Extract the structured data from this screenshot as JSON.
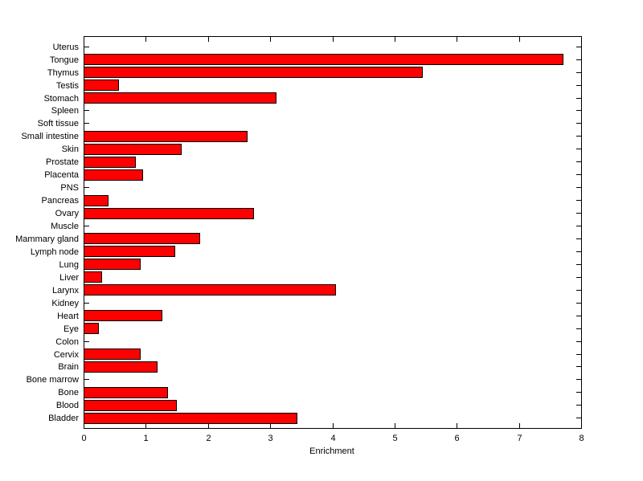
{
  "figure": {
    "background": "#ffffff"
  },
  "chart_data": {
    "type": "bar",
    "orientation": "horizontal",
    "title": "",
    "xlabel": "Enrichment",
    "ylabel": "",
    "xlim": [
      0,
      8
    ],
    "xticks": [
      0,
      1,
      2,
      3,
      4,
      5,
      6,
      7,
      8
    ],
    "grid": false,
    "legend": null,
    "bar_color": "#ff0000",
    "bar_edge_color": "#000000",
    "axis_color": "#000000",
    "tick_direction": "in",
    "categories": [
      "Uterus",
      "Tongue",
      "Thymus",
      "Testis",
      "Stomach",
      "Spleen",
      "Soft tissue",
      "Small intestine",
      "Skin",
      "Prostate",
      "Placenta",
      "PNS",
      "Pancreas",
      "Ovary",
      "Muscle",
      "Mammary gland",
      "Lymph node",
      "Lung",
      "Liver",
      "Larynx",
      "Kidney",
      "Heart",
      "Eye",
      "Colon",
      "Cervix",
      "Brain",
      "Bone marrow",
      "Bone",
      "Blood",
      "Bladder"
    ],
    "values": [
      0,
      7.7,
      5.44,
      0.55,
      3.09,
      0,
      0,
      2.63,
      1.57,
      0.83,
      0.94,
      0,
      0.39,
      2.73,
      0,
      1.86,
      1.46,
      0.9,
      0.28,
      4.04,
      0,
      1.26,
      0.23,
      0,
      0.9,
      1.18,
      0,
      1.35,
      1.49,
      3.42
    ],
    "category_order_note": "listed top to bottom as displayed"
  }
}
